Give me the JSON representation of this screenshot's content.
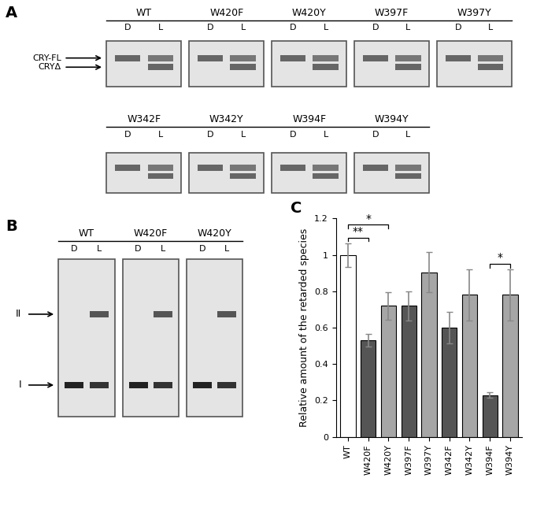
{
  "panel_labels": [
    "A",
    "B",
    "C"
  ],
  "gel_A": {
    "rows": [
      [
        "WT",
        "W420F",
        "W420Y",
        "W397F",
        "W397Y"
      ],
      [
        "W342F",
        "W342Y",
        "W394F",
        "W394Y"
      ]
    ],
    "conditions": [
      "D",
      "L"
    ],
    "bands": [
      "CRY-FL",
      "CRYΔ"
    ]
  },
  "gel_B": {
    "samples": [
      "WT",
      "W420F",
      "W420Y"
    ],
    "conditions": [
      "D",
      "L"
    ],
    "species": [
      "II",
      "I"
    ]
  },
  "chart_data": {
    "type": "bar",
    "y_label": "Relative amount of the retarded species",
    "categories": [
      "WT",
      "W420F",
      "W420Y",
      "W397F",
      "W397Y",
      "W342F",
      "W342Y",
      "W394F",
      "W394Y"
    ],
    "values": [
      1,
      0.53,
      0.72,
      0.72,
      0.905,
      0.6,
      0.78,
      0.23,
      0.78
    ],
    "errors": [
      0.065,
      0.035,
      0.075,
      0.08,
      0.11,
      0.085,
      0.14,
      0.015,
      0.14
    ],
    "colors": [
      "#ffffff",
      "#555555",
      "#a6a6a6",
      "#555555",
      "#a6a6a6",
      "#555555",
      "#a6a6a6",
      "#555555",
      "#a6a6a6"
    ],
    "ylim": [
      0,
      1.2
    ],
    "yticks": [
      0,
      0.2,
      0.4,
      0.6,
      0.8,
      1,
      1.2
    ],
    "significance": [
      {
        "from": "WT",
        "to": "W420F",
        "label": "**"
      },
      {
        "from": "WT",
        "to": "W420Y",
        "label": "*"
      },
      {
        "from": "W394F",
        "to": "W394Y",
        "label": "*"
      }
    ]
  }
}
